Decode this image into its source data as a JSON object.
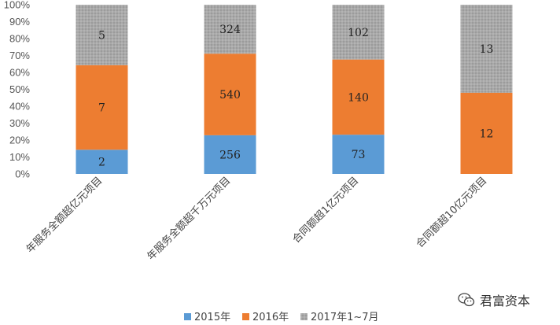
{
  "chart_data": {
    "type": "bar",
    "stacked": "percent",
    "categories": [
      "年服务全额超亿元项目",
      "年服务全额超千万元项目",
      "合同额超1亿元项目",
      "合同额超10亿元项目"
    ],
    "series": [
      {
        "name": "2015年",
        "values": [
          2,
          256,
          73,
          0
        ],
        "color": "#5b9bd5"
      },
      {
        "name": "2016年",
        "values": [
          7,
          540,
          140,
          12
        ],
        "color": "#ed7d31"
      },
      {
        "name": "2017年1~7月",
        "values": [
          5,
          324,
          102,
          13
        ],
        "color": "#a5a5a5"
      }
    ],
    "yticks": [
      "0%",
      "10%",
      "20%",
      "30%",
      "40%",
      "50%",
      "60%",
      "70%",
      "80%",
      "90%",
      "100%"
    ],
    "ylim": [
      0,
      100
    ],
    "legend_position": "bottom"
  },
  "watermark": {
    "text": "君富资本",
    "icon": "wechat-logo-icon"
  }
}
